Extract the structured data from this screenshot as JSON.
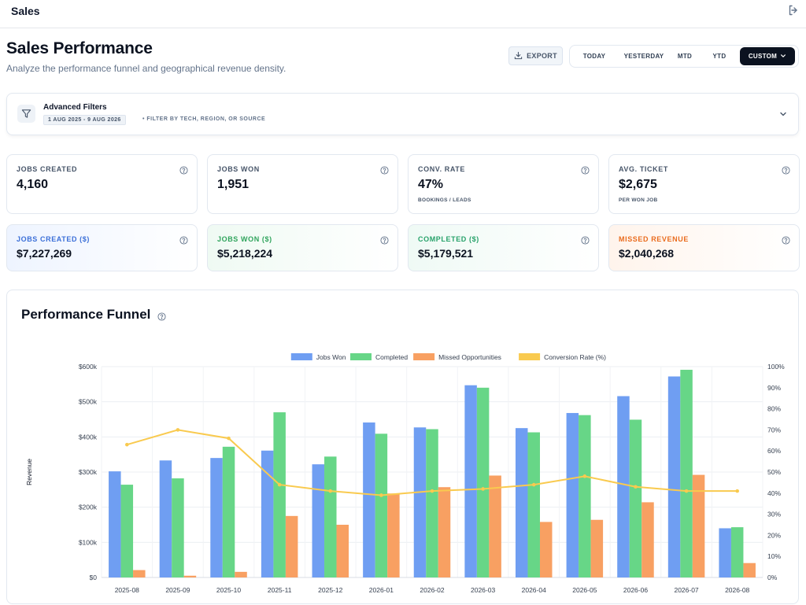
{
  "app": {
    "title": "Sales"
  },
  "header": {
    "title": "Sales Performance",
    "subtitle": "Analyze the performance funnel and geographical revenue density.",
    "export_label": "EXPORT",
    "ranges": [
      "TODAY",
      "YESTERDAY",
      "MTD",
      "YTD",
      "CUSTOM"
    ],
    "active_range": "CUSTOM"
  },
  "filters": {
    "title": "Advanced Filters",
    "date_range": "1 AUG 2025 - 9 AUG 2026",
    "hint": "• FILTER BY TECH, REGION, OR SOURCE"
  },
  "kpis": [
    {
      "label": "JOBS CREATED",
      "value": "4,160",
      "sub": ""
    },
    {
      "label": "JOBS WON",
      "value": "1,951",
      "sub": ""
    },
    {
      "label": "CONV. RATE",
      "value": "47%",
      "sub": "BOOKINGS / LEADS"
    },
    {
      "label": "AVG. TICKET",
      "value": "$2,675",
      "sub": "PER WON JOB"
    }
  ],
  "money": [
    {
      "label": "JOBS CREATED ($)",
      "value": "$7,227,269",
      "color": "#3b6fd8"
    },
    {
      "label": "JOBS WON ($)",
      "value": "$5,218,224",
      "color": "#2fa45c"
    },
    {
      "label": "COMPLETED ($)",
      "value": "$5,179,521",
      "color": "#27a26a"
    },
    {
      "label": "MISSED REVENUE",
      "value": "$2,040,268",
      "color": "#ea6c1e"
    }
  ],
  "funnel": {
    "title": "Performance Funnel"
  },
  "chart_data": {
    "type": "bar",
    "title": "",
    "xlabel": "",
    "ylabel": "Revenue",
    "y2label": "",
    "legend_position": "top",
    "grid": true,
    "ylim": [
      0,
      600000
    ],
    "y_ticks": [
      "$0",
      "$100k",
      "$200k",
      "$300k",
      "$400k",
      "$500k",
      "$600k"
    ],
    "y2lim": [
      0,
      100
    ],
    "y2_ticks": [
      "0%",
      "10%",
      "20%",
      "30%",
      "40%",
      "50%",
      "60%",
      "70%",
      "80%",
      "90%",
      "100%"
    ],
    "categories": [
      "2025-08",
      "2025-09",
      "2025-10",
      "2025-11",
      "2025-12",
      "2026-01",
      "2026-02",
      "2026-03",
      "2026-04",
      "2026-05",
      "2026-06",
      "2026-07",
      "2026-08"
    ],
    "series": [
      {
        "name": "Jobs Won",
        "kind": "bar",
        "axis": "left",
        "color": "#6f9ef2",
        "values": [
          302000,
          333000,
          340000,
          361000,
          322000,
          441000,
          427000,
          547000,
          425000,
          468000,
          516000,
          572000,
          140000
        ]
      },
      {
        "name": "Completed",
        "kind": "bar",
        "axis": "left",
        "color": "#67d687",
        "values": [
          264000,
          282000,
          372000,
          470000,
          344000,
          409000,
          422000,
          540000,
          413000,
          462000,
          449000,
          591000,
          143000
        ]
      },
      {
        "name": "Missed Opportunities",
        "kind": "bar",
        "axis": "left",
        "color": "#f8a062",
        "values": [
          21000,
          5000,
          16000,
          175000,
          150000,
          239000,
          257000,
          290000,
          158000,
          164000,
          214000,
          292000,
          41000
        ]
      },
      {
        "name": "Conversion Rate (%)",
        "kind": "line",
        "axis": "right",
        "color": "#f9ca4f",
        "values": [
          63,
          70,
          66,
          44,
          41,
          39,
          41,
          42,
          44,
          48,
          43,
          41,
          41
        ]
      }
    ]
  }
}
